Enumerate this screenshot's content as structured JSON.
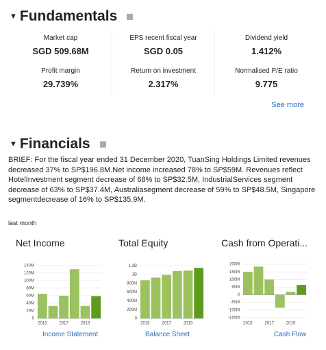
{
  "fundamentals": {
    "title": "Fundamentals",
    "items": [
      {
        "label": "Market cap",
        "value": "SGD 509.68M"
      },
      {
        "label": "EPS recent fiscal year",
        "value": "SGD 0.05"
      },
      {
        "label": "Dividend yield",
        "value": "1.412%"
      },
      {
        "label": "Profit margin",
        "value": "29.739%"
      },
      {
        "label": "Return on investment",
        "value": "2.317%"
      },
      {
        "label": "Normalised P/E ratio",
        "value": "9.775"
      }
    ],
    "see_more": "See more"
  },
  "financials": {
    "title": "Financials",
    "brief": "BRIEF: For the fiscal year ended 31 December 2020, TuanSing Holdings Limited revenues decreased 37% to SP$196.8M.Net income increased 78% to SP$59M. Revenues reflect HotelInvestment segment decrease of 68% to SP$32.5M, IndustrialServices segment decrease of 63% to SP$37.4M, Australiasegment decrease of 59% to SP$48.5M, Singapore segmentdecrease of 16% to SP$135.9M.",
    "period": "last month",
    "links": [
      "Income Statement",
      "Balance Sheet",
      "Cash Flow"
    ]
  },
  "chart_data": [
    {
      "type": "bar",
      "title": "Net Income",
      "categories": [
        "2015",
        null,
        "2017",
        null,
        "2019",
        null
      ],
      "values": [
        65000000,
        33000000,
        60000000,
        130000000,
        33000000,
        59000000
      ],
      "colors": [
        "#9bc25e",
        "#9bc25e",
        "#9bc25e",
        "#9bc25e",
        "#9bc25e",
        "#5e9a1e"
      ],
      "ylim": [
        0,
        145000000
      ],
      "yticks": [
        0,
        {
          "value": 20000000,
          "label": "20M"
        },
        {
          "value": 40000000,
          "label": "40M"
        },
        {
          "value": 60000000,
          "label": "60M"
        },
        {
          "value": 80000000,
          "label": "80M"
        },
        {
          "value": 100000000,
          "label": "100M"
        },
        {
          "value": 120000000,
          "label": "120M"
        },
        {
          "value": 140000000,
          "label": "140M"
        }
      ],
      "grid": true
    },
    {
      "type": "bar",
      "title": "Total Equity",
      "categories": [
        "2015",
        null,
        "2017",
        null,
        "2019",
        null
      ],
      "values": [
        870000000,
        930000000,
        990000000,
        1080000000,
        1090000000,
        1150000000
      ],
      "colors": [
        "#9bc25e",
        "#9bc25e",
        "#9bc25e",
        "#9bc25e",
        "#9bc25e",
        "#5e9a1e"
      ],
      "ylim": [
        0,
        1250000000
      ],
      "yticks": [
        0,
        {
          "value": 200000000,
          "label": "200M"
        },
        {
          "value": 400000000,
          "label": "400M"
        },
        {
          "value": 600000000,
          "label": "600M"
        },
        {
          "value": 800000000,
          "label": "800M"
        },
        {
          "value": 1000000000,
          "label": "1B"
        },
        {
          "value": 1200000000,
          "label": "1.2B"
        }
      ],
      "grid": true
    },
    {
      "type": "bar",
      "title": "Cash from Operati...",
      "categories": [
        "2015",
        null,
        "2017",
        null,
        "2019",
        null
      ],
      "values": [
        150000000,
        185000000,
        100000000,
        -85000000,
        20000000,
        65000000
      ],
      "colors": [
        "#9bc25e",
        "#9bc25e",
        "#9bc25e",
        "#9bc25e",
        "#9bc25e",
        "#5e9a1e"
      ],
      "ylim": [
        -155000000,
        205000000
      ],
      "yticks": [
        {
          "value": -150000000,
          "label": "-150M"
        },
        {
          "value": -100000000,
          "label": "-100M"
        },
        {
          "value": -50000000,
          "label": "-50M"
        },
        0,
        {
          "value": 50000000,
          "label": "50M"
        },
        {
          "value": 100000000,
          "label": "100M"
        },
        {
          "value": 150000000,
          "label": "150M"
        },
        {
          "value": 200000000,
          "label": "200M"
        }
      ],
      "grid": true
    }
  ]
}
